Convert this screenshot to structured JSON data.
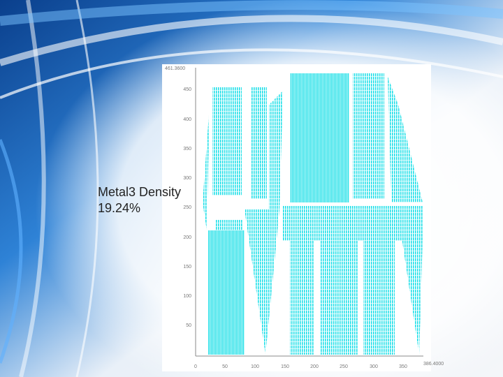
{
  "slide": {
    "label": "Metal3 Density",
    "density": "19.24%"
  },
  "layout_plot": {
    "y_top_label": "461.3600",
    "y_tick_labels": [
      "450",
      "400",
      "350",
      "300",
      "250",
      "200",
      "150",
      "100",
      "50"
    ],
    "x_tick_labels": [
      "0",
      "50",
      "100",
      "150",
      "200",
      "250",
      "300",
      "350"
    ],
    "x_end_label": "386.4000"
  }
}
